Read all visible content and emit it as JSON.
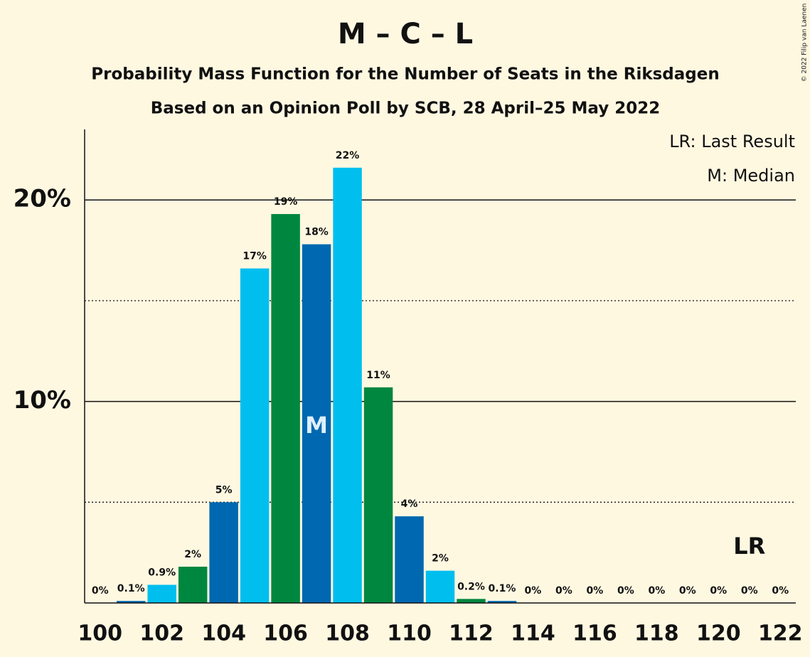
{
  "chart_data": {
    "type": "bar",
    "title": "M – C – L",
    "subtitle": "Probability Mass Function for the Number of Seats in the Riksdagen",
    "subtitle2": "Based on an Opinion Poll by SCB, 28 April–25 May 2022",
    "credit": "© 2022 Filip van Laenen",
    "legend_notes": [
      "LR: Last Result",
      "M: Median"
    ],
    "x": [
      100,
      101,
      102,
      103,
      104,
      105,
      106,
      107,
      108,
      109,
      110,
      111,
      112,
      113,
      114,
      115,
      116,
      117,
      118,
      119,
      120,
      121,
      122
    ],
    "values": [
      0,
      0.1,
      0.9,
      1.8,
      5.0,
      16.6,
      19.3,
      17.8,
      21.6,
      10.7,
      4.3,
      1.6,
      0.2,
      0.1,
      0,
      0,
      0,
      0,
      0,
      0,
      0,
      0,
      0
    ],
    "value_labels": [
      "0%",
      "0.1%",
      "0.9%",
      "2%",
      "5%",
      "17%",
      "19%",
      "18%",
      "22%",
      "11%",
      "4%",
      "2%",
      "0.2%",
      "0.1%",
      "0%",
      "0%",
      "0%",
      "0%",
      "0%",
      "0%",
      "0%",
      "0%",
      "0%"
    ],
    "colors": [
      "#00873f",
      "#0068b0",
      "#00bfef",
      "#00873f",
      "#0068b0",
      "#00bfef",
      "#00873f",
      "#0068b0",
      "#00bfef",
      "#00873f",
      "#0068b0",
      "#00bfef",
      "#00873f",
      "#0068b0",
      "#00bfef",
      "#00873f",
      "#0068b0",
      "#00bfef",
      "#00873f",
      "#0068b0",
      "#00bfef",
      "#00873f",
      "#0068b0"
    ],
    "xlim": [
      99.5,
      122.5
    ],
    "xticks": [
      100,
      102,
      104,
      106,
      108,
      110,
      112,
      114,
      116,
      118,
      120,
      122
    ],
    "ylim": [
      0,
      23.5
    ],
    "yticks": [
      {
        "value": 10,
        "label": "10%"
      },
      {
        "value": 20,
        "label": "20%"
      }
    ],
    "minor_yticks": [
      5,
      15
    ],
    "grid": true,
    "annotations": [
      {
        "x": 107,
        "label": "M"
      },
      {
        "x": 121,
        "label": "LR"
      }
    ]
  }
}
